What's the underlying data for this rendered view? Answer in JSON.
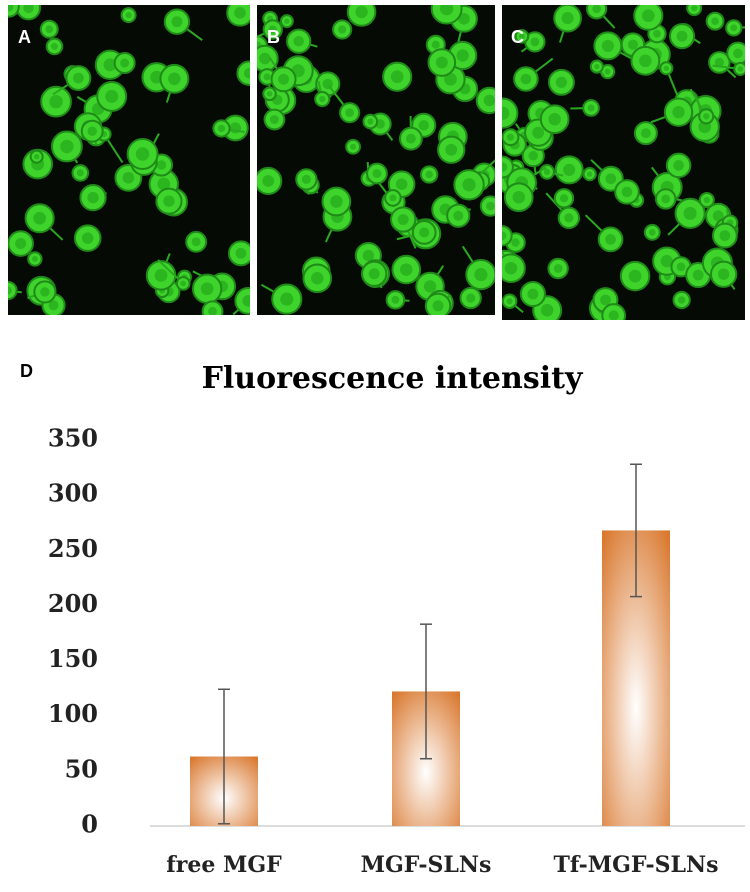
{
  "panel_labels": [
    "A",
    "B",
    "C",
    "D"
  ],
  "chart_data": {
    "type": "bar",
    "title": "Fluorescence intensity",
    "categories": [
      "free MGF",
      "MGF-SLNs",
      "Tf-MGF-SLNs"
    ],
    "values": [
      63,
      122,
      268
    ],
    "errors": [
      61,
      61,
      60
    ],
    "color": "#d9782e",
    "ylim": [
      0,
      350
    ],
    "yticks": [
      0,
      50,
      100,
      150,
      200,
      250,
      300,
      350
    ],
    "grid": false
  }
}
